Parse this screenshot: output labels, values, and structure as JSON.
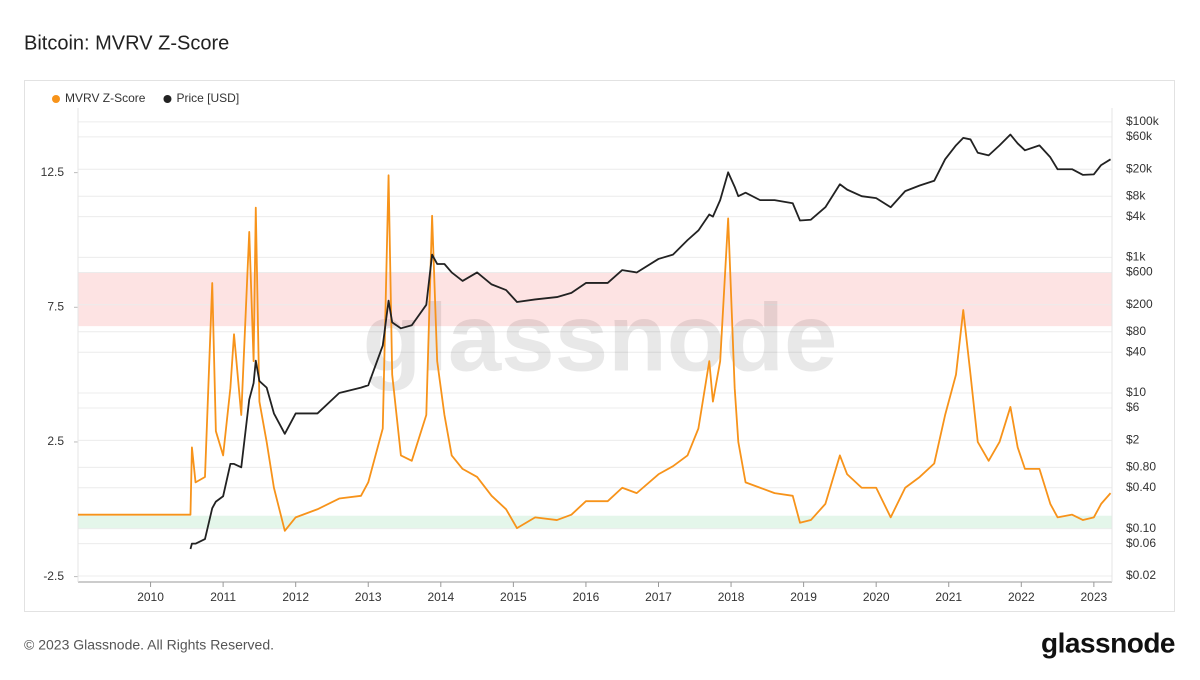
{
  "chart_data": {
    "type": "line",
    "title": "Bitcoin: MVRV Z-Score",
    "watermark": "glassnode",
    "copyright": "© 2023 Glassnode. All Rights Reserved.",
    "logo": "glassnode",
    "legend": "top-left",
    "x": [
      2009.0,
      2010.0,
      2010.55,
      2010.57,
      2010.62,
      2010.75,
      2010.85,
      2010.9,
      2011.0,
      2011.1,
      2011.15,
      2011.25,
      2011.36,
      2011.42,
      2011.45,
      2011.5,
      2011.6,
      2011.7,
      2011.85,
      2012.0,
      2012.3,
      2012.6,
      2012.9,
      2013.0,
      2013.2,
      2013.28,
      2013.33,
      2013.45,
      2013.6,
      2013.8,
      2013.88,
      2013.95,
      2014.05,
      2014.15,
      2014.3,
      2014.5,
      2014.7,
      2014.9,
      2015.05,
      2015.3,
      2015.6,
      2015.8,
      2016.0,
      2016.3,
      2016.5,
      2016.7,
      2017.0,
      2017.2,
      2017.4,
      2017.55,
      2017.7,
      2017.75,
      2017.85,
      2017.96,
      2018.05,
      2018.1,
      2018.2,
      2018.4,
      2018.6,
      2018.85,
      2018.95,
      2019.1,
      2019.3,
      2019.5,
      2019.6,
      2019.8,
      2020.0,
      2020.2,
      2020.4,
      2020.6,
      2020.8,
      2020.95,
      2021.1,
      2021.2,
      2021.3,
      2021.4,
      2021.55,
      2021.7,
      2021.85,
      2021.95,
      2022.05,
      2022.25,
      2022.4,
      2022.5,
      2022.7,
      2022.85,
      2023.0,
      2023.1,
      2023.23
    ],
    "series": [
      {
        "name": "MVRV Z-Score",
        "color": "#f7931a",
        "axis": "y",
        "values": [
          -0.2,
          -0.2,
          -0.2,
          2.3,
          1.0,
          1.2,
          8.4,
          2.9,
          2.0,
          4.5,
          6.5,
          3.5,
          10.3,
          5.5,
          11.2,
          4.0,
          2.5,
          0.8,
          -0.8,
          -0.3,
          0.0,
          0.4,
          0.5,
          1.0,
          3.0,
          12.4,
          5.0,
          2.0,
          1.8,
          3.5,
          10.9,
          5.5,
          3.5,
          2.0,
          1.5,
          1.2,
          0.5,
          0.0,
          -0.7,
          -0.3,
          -0.4,
          -0.2,
          0.3,
          0.3,
          0.8,
          0.6,
          1.3,
          1.6,
          2.0,
          3.0,
          5.5,
          4.0,
          5.5,
          10.8,
          4.5,
          2.5,
          1.0,
          0.8,
          0.6,
          0.5,
          -0.5,
          -0.4,
          0.2,
          2.0,
          1.3,
          0.8,
          0.8,
          -0.3,
          0.8,
          1.2,
          1.7,
          3.5,
          5.0,
          7.4,
          5.0,
          2.5,
          1.8,
          2.5,
          3.8,
          2.3,
          1.5,
          1.5,
          0.2,
          -0.3,
          -0.2,
          -0.4,
          -0.3,
          0.2,
          0.6
        ]
      },
      {
        "name": "Price [USD]",
        "color": "#222222",
        "axis": "y2",
        "values": [
          null,
          null,
          0.05,
          0.06,
          0.06,
          0.07,
          0.2,
          0.25,
          0.3,
          0.9,
          0.9,
          0.8,
          8,
          14,
          30,
          15,
          12,
          5,
          2.5,
          5,
          5,
          10,
          12,
          13,
          50,
          230,
          110,
          90,
          100,
          200,
          1100,
          800,
          800,
          600,
          450,
          600,
          400,
          330,
          220,
          240,
          260,
          300,
          420,
          420,
          650,
          600,
          950,
          1100,
          1800,
          2500,
          4300,
          4000,
          7000,
          18000,
          11000,
          8000,
          9000,
          7000,
          7000,
          6300,
          3500,
          3600,
          5500,
          12000,
          10000,
          8000,
          7500,
          5500,
          9500,
          11500,
          13500,
          28000,
          45000,
          58000,
          55000,
          35000,
          32000,
          45000,
          65000,
          48000,
          38000,
          45000,
          30000,
          20000,
          20000,
          16500,
          16800,
          23000,
          28000
        ]
      }
    ],
    "zones": [
      {
        "range": [
          6.8,
          8.8
        ],
        "color": "#fde3e3"
      },
      {
        "range": [
          -0.72,
          -0.24
        ],
        "color": "#e4f6ea"
      }
    ],
    "xlim": [
      2009.0,
      2023.25
    ],
    "xticks": [
      2010,
      2011,
      2012,
      2013,
      2014,
      2015,
      2016,
      2017,
      2018,
      2019,
      2020,
      2021,
      2022,
      2023
    ],
    "ylim": [
      -2.7,
      14.9
    ],
    "yticks": [
      -2.5,
      2.5,
      7.5,
      12.5
    ],
    "y2scale": "log",
    "y2lim": [
      0.0163,
      160000
    ],
    "y2ticks": [
      {
        "value": 0.02,
        "label": "$0.02"
      },
      {
        "value": 0.06,
        "label": "$0.06"
      },
      {
        "value": 0.1,
        "label": "$0.10"
      },
      {
        "value": 0.4,
        "label": "$0.40"
      },
      {
        "value": 0.8,
        "label": "$0.80"
      },
      {
        "value": 2,
        "label": "$2"
      },
      {
        "value": 6,
        "label": "$6"
      },
      {
        "value": 10,
        "label": "$10"
      },
      {
        "value": 40,
        "label": "$40"
      },
      {
        "value": 80,
        "label": "$80"
      },
      {
        "value": 200,
        "label": "$200"
      },
      {
        "value": 600,
        "label": "$600"
      },
      {
        "value": 1000,
        "label": "$1k"
      },
      {
        "value": 4000,
        "label": "$4k"
      },
      {
        "value": 8000,
        "label": "$8k"
      },
      {
        "value": 20000,
        "label": "$20k"
      },
      {
        "value": 60000,
        "label": "$60k"
      },
      {
        "value": 100000,
        "label": "$100k"
      }
    ],
    "grid": true
  }
}
